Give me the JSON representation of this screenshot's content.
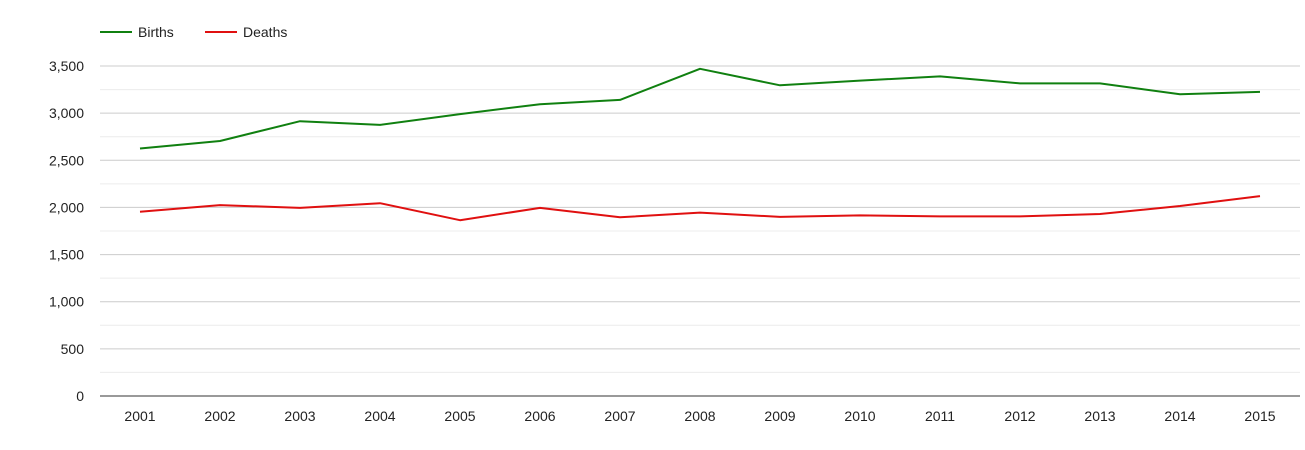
{
  "chart_data": {
    "type": "line",
    "title": "",
    "xlabel": "",
    "ylabel": "",
    "categories": [
      "2001",
      "2002",
      "2003",
      "2004",
      "2005",
      "2006",
      "2007",
      "2008",
      "2009",
      "2010",
      "2011",
      "2012",
      "2013",
      "2014",
      "2015"
    ],
    "series": [
      {
        "name": "Births",
        "color": "#108010",
        "values": [
          2625,
          2705,
          2915,
          2875,
          2990,
          3095,
          3140,
          3470,
          3295,
          3345,
          3390,
          3315,
          3315,
          3200,
          3225
        ]
      },
      {
        "name": "Deaths",
        "color": "#e01010",
        "values": [
          1955,
          2025,
          1995,
          2045,
          1865,
          1995,
          1895,
          1945,
          1900,
          1915,
          1905,
          1905,
          1930,
          2015,
          2120
        ]
      }
    ],
    "y_ticks": [
      0,
      500,
      1000,
      1500,
      2000,
      2500,
      3000,
      3500
    ],
    "y_tick_labels": [
      "0",
      "500",
      "1,000",
      "1,500",
      "2,000",
      "2,500",
      "3,000",
      "3,500"
    ],
    "ylim": [
      0,
      3500
    ],
    "grid": true,
    "minor_grid": true,
    "legend": "top-left"
  }
}
